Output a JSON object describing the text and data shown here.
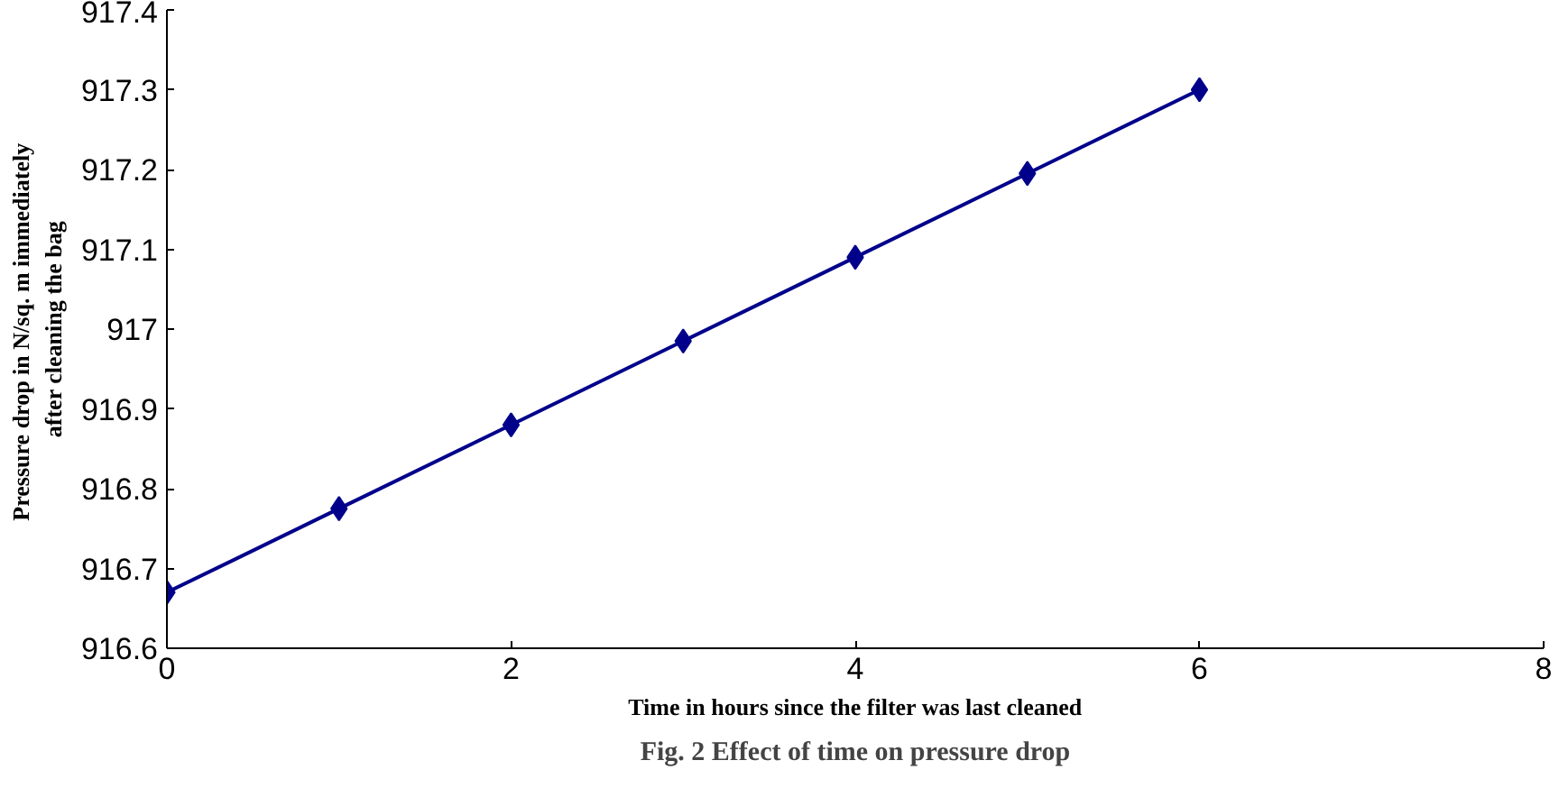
{
  "chart_data": {
    "type": "line",
    "title": "Fig. 2 Effect of time on pressure drop",
    "xlabel": "Time in hours since the filter was last cleaned",
    "ylabel": "Pressure drop in N/sq. m  immediately\nafter cleaning the bag",
    "x": [
      0,
      1,
      2,
      3,
      4,
      5,
      6
    ],
    "series": [
      {
        "color": "#00008b",
        "values": [
          916.67,
          916.775,
          916.88,
          916.985,
          917.09,
          917.195,
          917.3
        ]
      }
    ],
    "xlim": [
      0,
      8
    ],
    "xticks": [
      0,
      2,
      4,
      6,
      8
    ],
    "ylim": [
      916.6,
      917.4
    ],
    "yticks": [
      916.6,
      916.7,
      916.8,
      916.9,
      917,
      917.1,
      917.2,
      917.3,
      917.4
    ],
    "marker": "diamond",
    "line_style": "solid"
  }
}
